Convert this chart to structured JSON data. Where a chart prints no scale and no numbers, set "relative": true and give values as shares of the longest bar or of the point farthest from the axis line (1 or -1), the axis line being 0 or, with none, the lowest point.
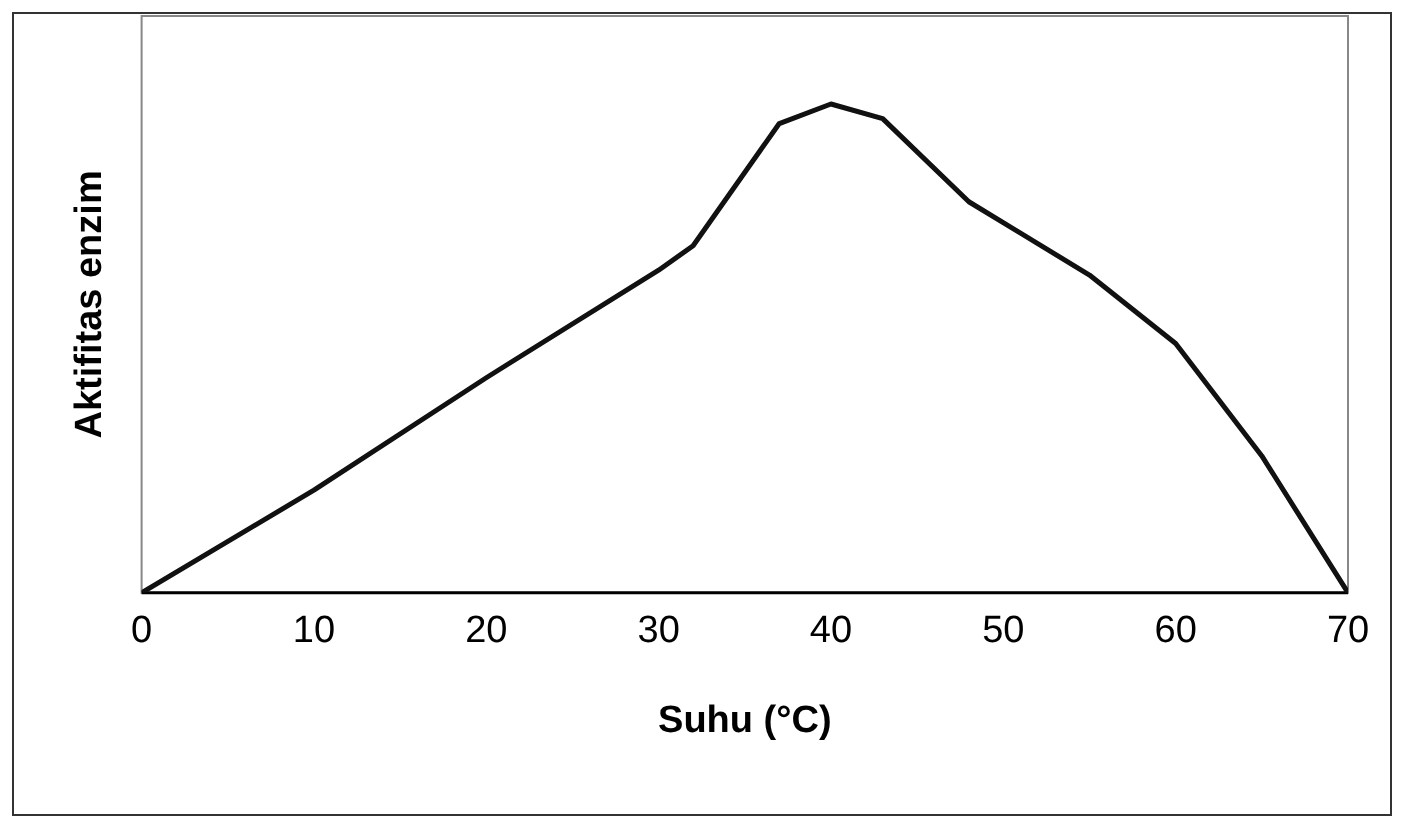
{
  "chart_data": {
    "type": "line",
    "relative": true,
    "xlabel": "Suhu (°C)",
    "ylabel": "Aktifitas enzim",
    "x": [
      0,
      10,
      20,
      30,
      32,
      37,
      40,
      43,
      48,
      55,
      60,
      65,
      70
    ],
    "series": [
      {
        "color": "#111111",
        "values": [
          0,
          0.21,
          0.44,
          0.66,
          0.71,
          0.96,
          1,
          0.97,
          0.8,
          0.65,
          0.51,
          0.28,
          0
        ]
      }
    ],
    "xlim": [
      0,
      70
    ],
    "xticks": [
      0,
      10,
      20,
      30,
      40,
      50,
      60,
      70
    ],
    "grid": false,
    "legend": false,
    "marker": "none",
    "line_style": "solid"
  }
}
